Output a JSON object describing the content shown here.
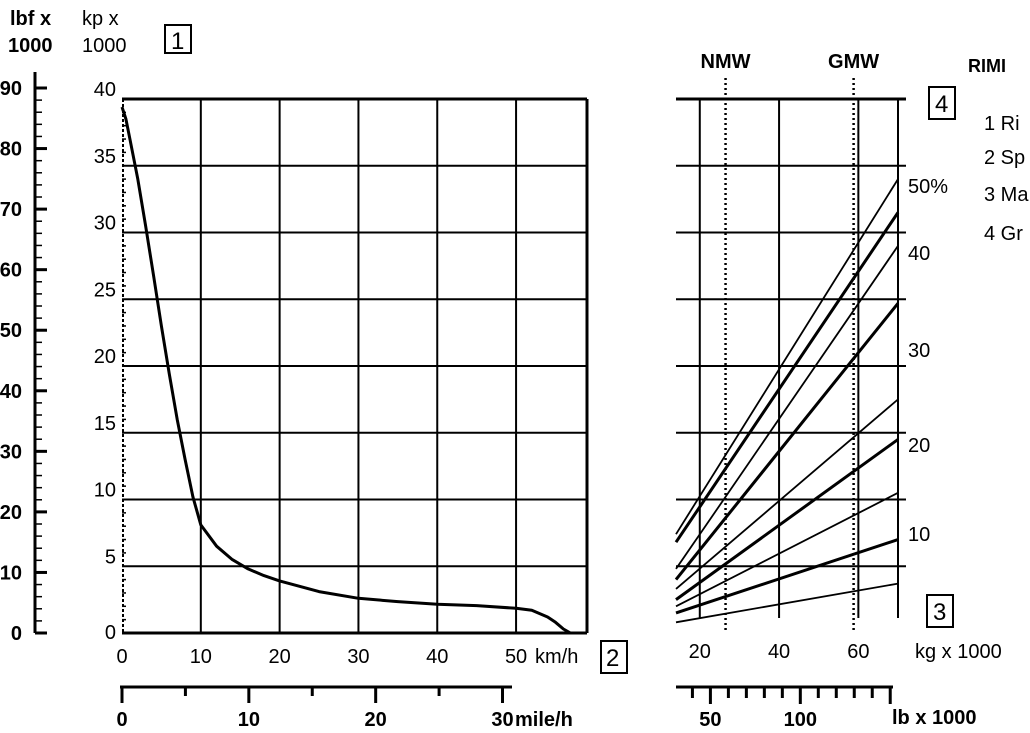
{
  "chart_data": [
    {
      "type": "line",
      "title": "",
      "left_outer_axis": {
        "label_line1": "lbf x",
        "label_line2": "1000",
        "ticks": [
          "90",
          "80",
          "70",
          "60",
          "50",
          "40",
          "30",
          "20",
          "10",
          "0"
        ]
      },
      "left_inner_axis": {
        "label_line1": "kp x",
        "label_line2": "1000",
        "ticks": [
          "40",
          "35",
          "30",
          "25",
          "20",
          "15",
          "10",
          "5",
          "0"
        ]
      },
      "ylim": [
        0,
        40
      ],
      "x_kmh_axis": {
        "unit": "km/h",
        "ticks": [
          "0",
          "10",
          "20",
          "30",
          "40",
          "50"
        ]
      },
      "xlim": [
        0,
        59
      ],
      "x_mph_axis": {
        "unit": "mile/h",
        "ticks": [
          "0",
          "10",
          "20",
          "30"
        ]
      },
      "series": [
        {
          "x": [
            0,
            0.5,
            1,
            2,
            3,
            4,
            5,
            6,
            7,
            8,
            9,
            10,
            12,
            14,
            16,
            18,
            20,
            25,
            30,
            35,
            40,
            45,
            50,
            52,
            54,
            55,
            56,
            56.9
          ],
          "y": [
            39.4,
            38.5,
            37.0,
            34.0,
            30.5,
            26.8,
            23.0,
            19.4,
            16.0,
            13.0,
            10.2,
            8.1,
            6.5,
            5.5,
            4.8,
            4.3,
            3.9,
            3.1,
            2.6,
            2.35,
            2.15,
            2.05,
            1.85,
            1.7,
            1.2,
            0.8,
            0.3,
            0.0
          ]
        }
      ],
      "box_labels": [
        "1",
        "2"
      ]
    },
    {
      "type": "line",
      "title": "",
      "x_kg_axis": {
        "unit": "kg x 1000",
        "ticks": [
          "20",
          "40",
          "60"
        ]
      },
      "xlim": [
        14,
        70
      ],
      "x_lb_axis": {
        "unit": "lb x 1000",
        "ticks": [
          "50",
          "100"
        ]
      },
      "gradient_ticks": [
        "50%",
        "40",
        "30",
        "20",
        "10"
      ],
      "reference_lines": [
        {
          "label": "NMW",
          "x": 26.5
        },
        {
          "label": "GMW",
          "x": 58.8
        }
      ],
      "series": [
        {
          "x": [
            14,
            70
          ],
          "y": [
            7.4,
            34.0
          ]
        },
        {
          "x": [
            14,
            70
          ],
          "y": [
            6.8,
            31.5
          ]
        },
        {
          "x": [
            14,
            70
          ],
          "y": [
            4.8,
            29.0
          ]
        },
        {
          "x": [
            14,
            70
          ],
          "y": [
            4.0,
            24.7
          ]
        },
        {
          "x": [
            14,
            70
          ],
          "y": [
            3.3,
            17.5
          ]
        },
        {
          "x": [
            14,
            70
          ],
          "y": [
            2.5,
            14.5
          ]
        },
        {
          "x": [
            14,
            70
          ],
          "y": [
            2.0,
            10.5
          ]
        },
        {
          "x": [
            14,
            70
          ],
          "y": [
            1.5,
            7.0
          ]
        },
        {
          "x": [
            14,
            70
          ],
          "y": [
            0.8,
            3.7
          ]
        }
      ],
      "box_labels": [
        "3",
        "4"
      ]
    }
  ],
  "legend": {
    "title": "RIMI",
    "items": [
      "1 Ri",
      "2 Sp",
      "3 Ma",
      "4 Gr"
    ]
  }
}
